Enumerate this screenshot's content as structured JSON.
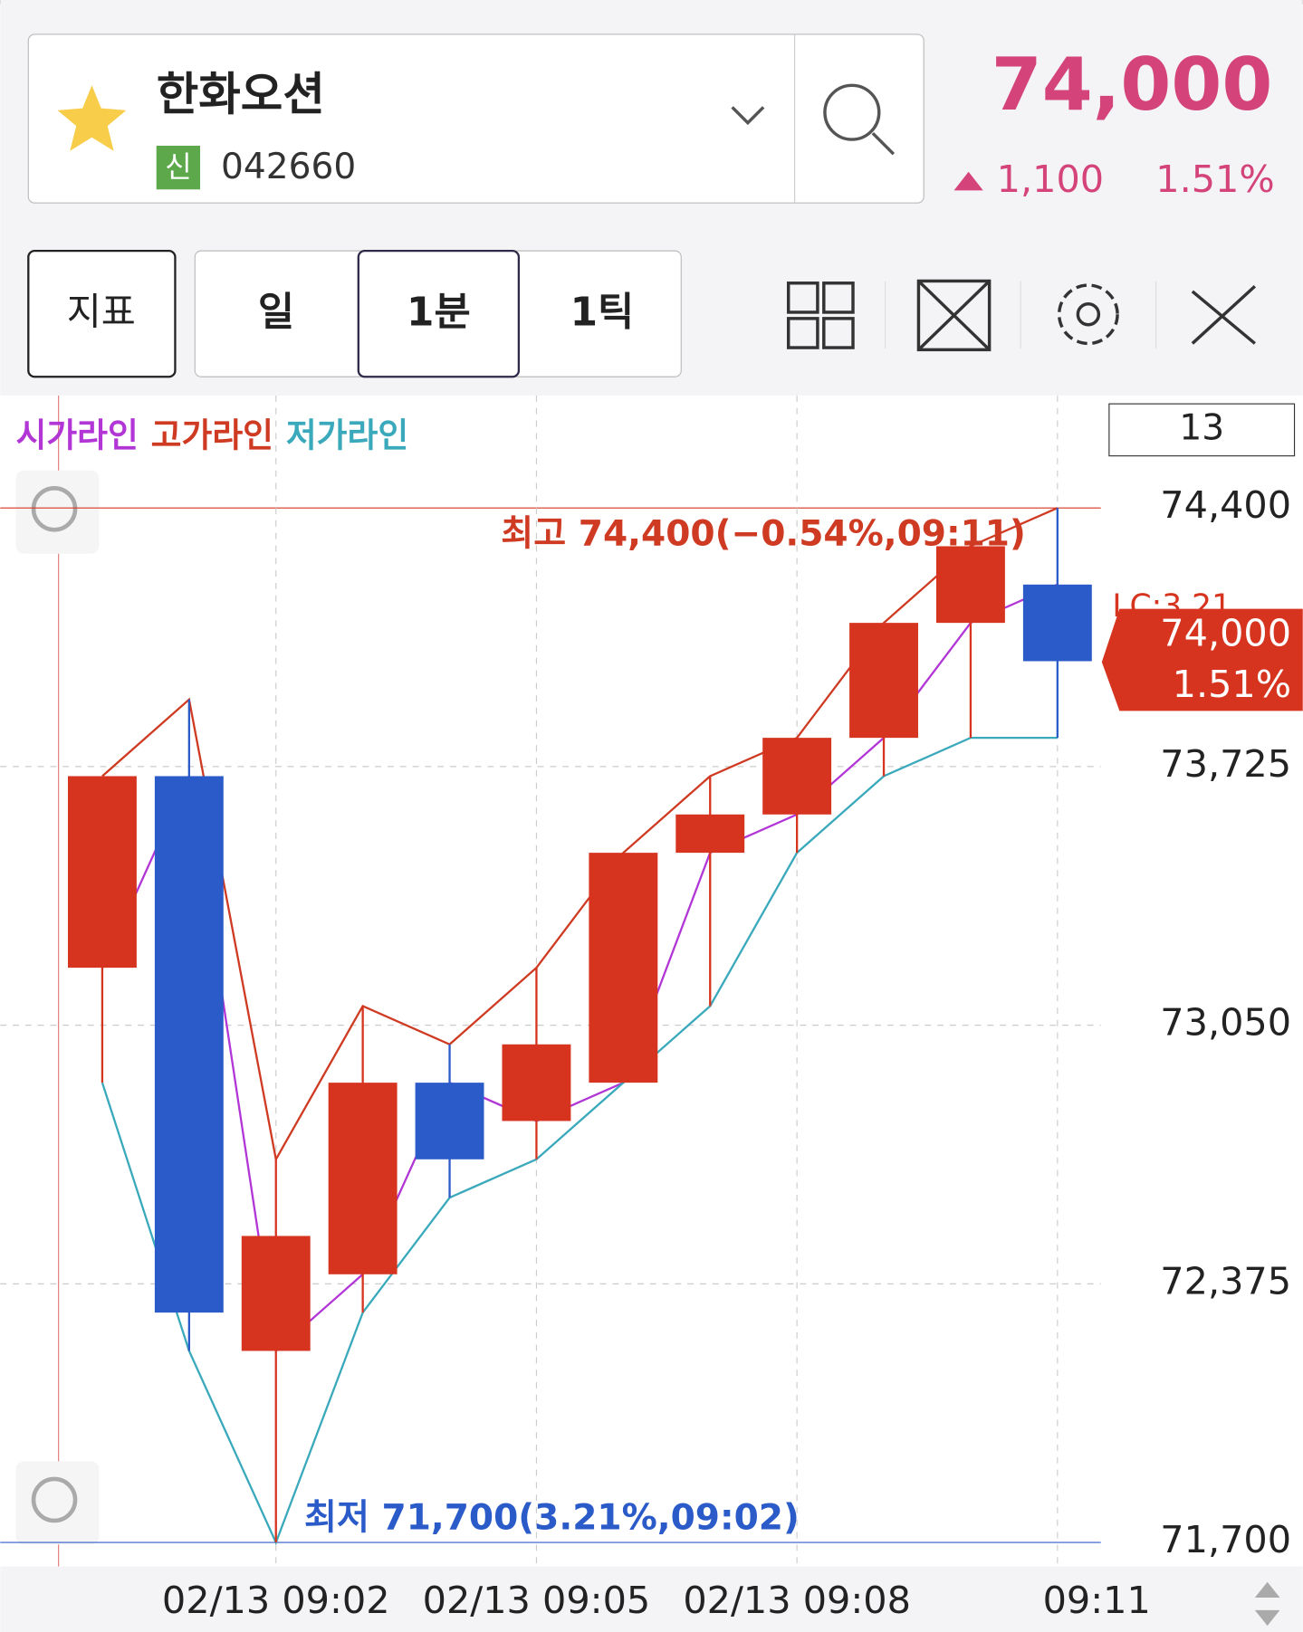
{
  "header": {
    "name": "한화오션",
    "badge": "신",
    "code": "042660",
    "price": "74,000",
    "change": "1,100",
    "rate": "1.51%"
  },
  "toolbar": {
    "indicator": "지표",
    "period_day": "일",
    "period_minute": "1분",
    "period_tick": "1틱"
  },
  "chart_data": {
    "type": "candlestick",
    "legend": [
      "시가라인",
      "고가라인",
      "저가라인"
    ],
    "legend_colors": [
      "#b236d6",
      "#cf3a22",
      "#3aa9bb"
    ],
    "count_label": "13",
    "categories": [
      null,
      null,
      "02/13 09:02",
      null,
      null,
      "02/13 09:05",
      null,
      null,
      "02/13 09:08",
      null,
      null,
      "09:11"
    ],
    "open": [
      73200,
      73700,
      72200,
      72400,
      72900,
      72800,
      72900,
      73500,
      73600,
      73800,
      74100,
      74200
    ],
    "high": [
      73700,
      73900,
      72700,
      73100,
      73000,
      73200,
      73500,
      73700,
      73800,
      74100,
      74300,
      74400
    ],
    "low": [
      72900,
      72200,
      71700,
      72300,
      72600,
      72700,
      72900,
      73100,
      73500,
      73700,
      73800,
      73800
    ],
    "close": [
      73700,
      72300,
      72500,
      72900,
      72700,
      73000,
      73500,
      73600,
      73800,
      74100,
      74300,
      74000
    ],
    "up_color": "#d6341f",
    "down_color": "#2a5bc9",
    "ylim": [
      71700,
      74400
    ],
    "yticks": [
      {
        "value": 74400,
        "label": "74,400"
      },
      {
        "value": 73725,
        "label": "73,725"
      },
      {
        "value": 73050,
        "label": "73,050"
      },
      {
        "value": 72375,
        "label": "72,375"
      },
      {
        "value": 71700,
        "label": "71,700"
      }
    ],
    "high_annotation": "최고 74,400(−0.54%,09:11)",
    "low_annotation": "최저 71,700(3.21%,09:02)",
    "lc_label": "LC:3.21",
    "current_price_label": "74,000",
    "current_rate_label": "1.51%"
  }
}
